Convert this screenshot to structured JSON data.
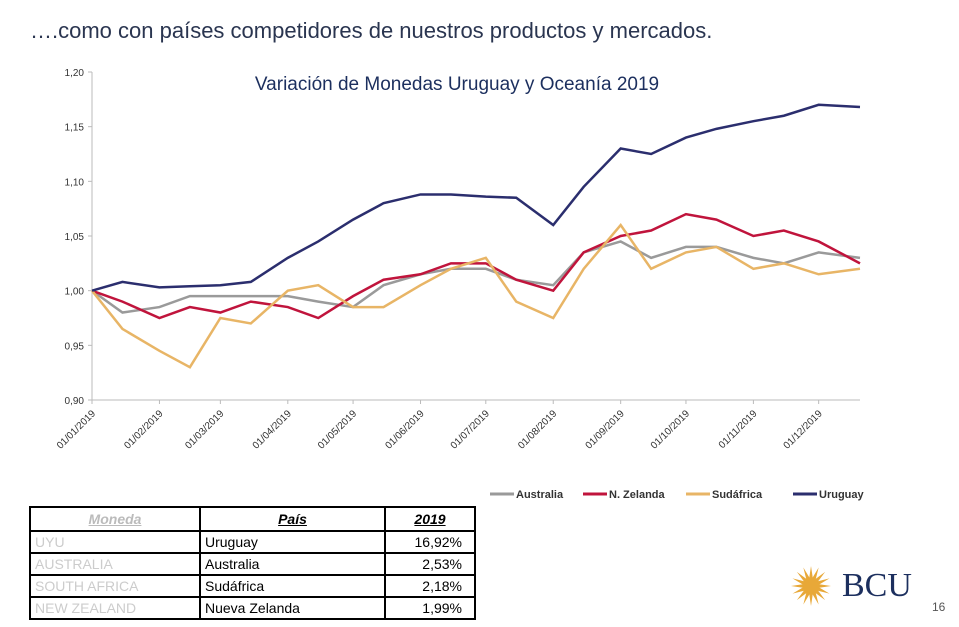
{
  "heading": "….como con países competidores de nuestros productos y mercados.",
  "chart_data": {
    "type": "line",
    "title": "Variación de Monedas Uruguay y Oceanía 2019",
    "xlabel": "",
    "ylabel": "",
    "ylim": [
      0.9,
      1.2
    ],
    "yticks": [
      "0,90",
      "0,95",
      "1,00",
      "1,05",
      "1,10",
      "1,15",
      "1,20"
    ],
    "xticks": [
      "01/01/2019",
      "01/02/2019",
      "01/03/2019",
      "01/04/2019",
      "01/05/2019",
      "01/06/2019",
      "01/07/2019",
      "01/08/2019",
      "01/09/2019",
      "01/10/2019",
      "01/11/2019",
      "01/12/2019"
    ],
    "x_unit": "day of year",
    "x": [
      1,
      15,
      32,
      46,
      60,
      74,
      91,
      105,
      121,
      135,
      152,
      166,
      182,
      196,
      213,
      227,
      244,
      258,
      274,
      288,
      305,
      319,
      335,
      354
    ],
    "legend_position": "bottom",
    "series": [
      {
        "name": "Australia",
        "color": "#9a9a9a",
        "values": [
          1.0,
          0.98,
          0.985,
          0.995,
          0.995,
          0.995,
          0.995,
          0.99,
          0.985,
          1.005,
          1.015,
          1.02,
          1.02,
          1.01,
          1.005,
          1.035,
          1.045,
          1.03,
          1.04,
          1.04,
          1.03,
          1.025,
          1.035,
          1.03
        ]
      },
      {
        "name": "N. Zelanda",
        "color": "#c0143c",
        "values": [
          1.0,
          0.99,
          0.975,
          0.985,
          0.98,
          0.99,
          0.985,
          0.975,
          0.995,
          1.01,
          1.015,
          1.025,
          1.025,
          1.01,
          1.0,
          1.035,
          1.05,
          1.055,
          1.07,
          1.065,
          1.05,
          1.055,
          1.045,
          1.025
        ]
      },
      {
        "name": "Sudáfrica",
        "color": "#e8b566",
        "values": [
          1.0,
          0.965,
          0.945,
          0.93,
          0.975,
          0.97,
          1.0,
          1.005,
          0.985,
          0.985,
          1.005,
          1.02,
          1.03,
          0.99,
          0.975,
          1.02,
          1.06,
          1.02,
          1.035,
          1.04,
          1.02,
          1.025,
          1.015,
          1.02
        ]
      },
      {
        "name": "Uruguay",
        "color": "#2b2e6e",
        "values": [
          1.0,
          1.008,
          1.003,
          1.004,
          1.005,
          1.008,
          1.03,
          1.045,
          1.065,
          1.08,
          1.088,
          1.088,
          1.086,
          1.085,
          1.06,
          1.095,
          1.13,
          1.125,
          1.14,
          1.148,
          1.155,
          1.16,
          1.17,
          1.168
        ]
      }
    ]
  },
  "table": {
    "headers": [
      "Moneda",
      "País",
      "2019"
    ],
    "rows": [
      [
        "UYU",
        "Uruguay",
        "16,92%"
      ],
      [
        "AUSTRALIA",
        "Australia",
        "2,53%"
      ],
      [
        "SOUTH AFRICA",
        "Sudáfrica",
        "2,18%"
      ],
      [
        "NEW ZEALAND",
        "Nueva Zelanda",
        "1,99%"
      ]
    ]
  },
  "logo": "BCU",
  "page_number": "16"
}
